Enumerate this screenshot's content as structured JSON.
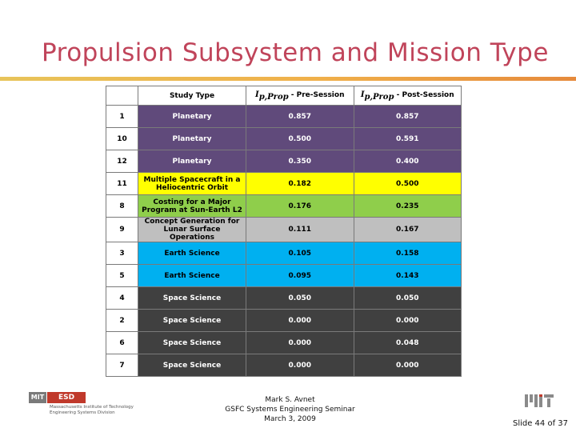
{
  "slide": {
    "title": "Propulsion Subsystem and Mission Type",
    "number_label": "Slide 44 of 37"
  },
  "footer": {
    "author": "Mark S. Avnet",
    "seminar": "GSFC Systems Engineering Seminar",
    "date": "March 3, 2009"
  },
  "logo": {
    "mit_text": "MIT",
    "esd_text": "ESD",
    "institute": "Massachusetts Institute of Technology",
    "division": "Engineering Systems Division"
  },
  "table": {
    "headers": {
      "study_type": "Study Type",
      "pre_symbol": "I",
      "pre_sub": "p,Prop",
      "pre_suffix": " - Pre-Session",
      "post_symbol": "I",
      "post_sub": "p,Prop",
      "post_suffix": " - Post-Session"
    },
    "rows": [
      {
        "num": "1",
        "type": "Planetary",
        "pre": "0.857",
        "post": "0.857",
        "color": "#604a7b",
        "text_color": "#ffffff"
      },
      {
        "num": "10",
        "type": "Planetary",
        "pre": "0.500",
        "post": "0.591",
        "color": "#604a7b",
        "text_color": "#ffffff"
      },
      {
        "num": "12",
        "type": "Planetary",
        "pre": "0.350",
        "post": "0.400",
        "color": "#604a7b",
        "text_color": "#ffffff"
      },
      {
        "num": "11",
        "type": "Multiple Spacecraft in a Heliocentric Orbit",
        "pre": "0.182",
        "post": "0.500",
        "color": "#ffff00",
        "text_color": "#000000"
      },
      {
        "num": "8",
        "type": "Costing for a Major Program at Sun-Earth L2",
        "pre": "0.176",
        "post": "0.235",
        "color": "#8fce4b",
        "text_color": "#000000"
      },
      {
        "num": "9",
        "type": "Concept Generation for Lunar Surface Operations",
        "pre": "0.111",
        "post": "0.167",
        "color": "#bfbfbf",
        "text_color": "#000000"
      },
      {
        "num": "3",
        "type": "Earth Science",
        "pre": "0.105",
        "post": "0.158",
        "color": "#00b0f0",
        "text_color": "#000000"
      },
      {
        "num": "5",
        "type": "Earth Science",
        "pre": "0.095",
        "post": "0.143",
        "color": "#00b0f0",
        "text_color": "#000000"
      },
      {
        "num": "4",
        "type": "Space Science",
        "pre": "0.050",
        "post": "0.050",
        "color": "#404040",
        "text_color": "#ffffff"
      },
      {
        "num": "2",
        "type": "Space Science",
        "pre": "0.000",
        "post": "0.000",
        "color": "#404040",
        "text_color": "#ffffff"
      },
      {
        "num": "6",
        "type": "Space Science",
        "pre": "0.000",
        "post": "0.048",
        "color": "#404040",
        "text_color": "#ffffff"
      },
      {
        "num": "7",
        "type": "Space Science",
        "pre": "0.000",
        "post": "0.000",
        "color": "#404040",
        "text_color": "#ffffff"
      }
    ]
  }
}
